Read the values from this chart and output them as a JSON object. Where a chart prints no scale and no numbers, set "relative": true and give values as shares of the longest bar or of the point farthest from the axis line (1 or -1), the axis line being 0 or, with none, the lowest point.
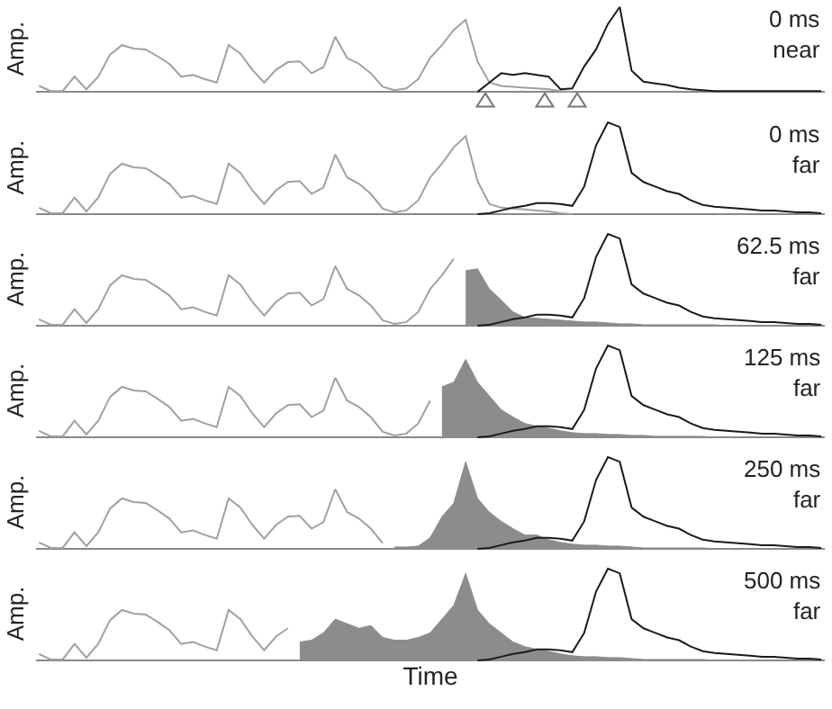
{
  "chart_data": [
    {
      "type": "line",
      "relative": true,
      "ylabel": "Amp.",
      "annotations": [
        "0 ms\nnear"
      ],
      "categories": [
        null,
        null,
        null,
        null,
        null,
        null,
        null,
        null,
        null,
        null,
        null,
        null,
        null,
        null,
        null,
        null,
        null,
        null,
        null,
        null,
        null,
        null,
        null,
        null,
        null,
        null,
        null,
        null,
        null,
        null,
        null,
        null,
        null,
        null,
        null,
        null,
        null,
        null,
        null,
        null,
        null,
        null,
        null,
        null,
        null,
        null,
        null,
        null,
        null,
        null,
        null,
        null,
        null,
        null,
        null,
        null,
        null,
        null,
        null,
        null,
        null,
        null,
        null,
        null,
        null,
        null,
        null
      ],
      "series": [
        {
          "type": "line",
          "color": "#a0a0a0",
          "values": [
            0.07,
            0.01,
            0.01,
            0.18,
            0.03,
            0.18,
            0.44,
            0.55,
            0.51,
            0.5,
            0.42,
            0.33,
            0.18,
            0.2,
            0.15,
            0.11,
            0.55,
            0.45,
            0.26,
            0.11,
            0.26,
            0.35,
            0.36,
            0.22,
            0.29,
            0.65,
            0.4,
            0.33,
            0.22,
            0.06,
            0.02,
            0.04,
            0.15,
            0.4,
            0.55,
            0.73,
            0.85,
            0.36,
            0.11,
            0.07,
            0.06,
            0.05,
            0.04,
            0.03,
            0.01,
            0,
            null,
            null,
            null,
            null,
            null,
            null,
            null,
            null,
            null,
            null,
            null,
            null,
            null,
            null,
            null,
            null,
            null,
            null,
            null,
            null,
            null
          ]
        },
        {
          "type": "line",
          "color": "#1a1a1a",
          "values": [
            null,
            null,
            null,
            null,
            null,
            null,
            null,
            null,
            null,
            null,
            null,
            null,
            null,
            null,
            null,
            null,
            null,
            null,
            null,
            null,
            null,
            null,
            null,
            null,
            null,
            null,
            null,
            null,
            null,
            null,
            null,
            null,
            null,
            null,
            null,
            null,
            null,
            0,
            0.11,
            0.22,
            0.2,
            0.22,
            0.2,
            0.18,
            0.03,
            0.04,
            0.3,
            0.5,
            0.8,
            1,
            0.25,
            0.12,
            0.1,
            0.08,
            0.05,
            0.03,
            0.02,
            0.01,
            0.01,
            0.01,
            0.01,
            0.01,
            0.01,
            0.01,
            0.01,
            0.01,
            0.01
          ]
        }
      ]
    },
    {
      "type": "line",
      "relative": true,
      "ylabel": "Amp.",
      "annotations": [
        "0 ms\nfar"
      ],
      "categories": [
        null,
        null,
        null,
        null,
        null,
        null,
        null,
        null,
        null,
        null,
        null,
        null,
        null,
        null,
        null,
        null,
        null,
        null,
        null,
        null,
        null,
        null,
        null,
        null,
        null,
        null,
        null,
        null,
        null,
        null,
        null,
        null,
        null,
        null,
        null,
        null,
        null,
        null,
        null,
        null,
        null,
        null,
        null,
        null,
        null,
        null,
        null,
        null,
        null,
        null,
        null,
        null,
        null,
        null,
        null,
        null,
        null,
        null,
        null,
        null,
        null,
        null,
        null,
        null,
        null,
        null,
        null
      ],
      "series": [
        {
          "type": "line",
          "color": "#a0a0a0",
          "values": [
            0.07,
            0.01,
            0.01,
            0.18,
            0.03,
            0.18,
            0.44,
            0.55,
            0.51,
            0.5,
            0.42,
            0.33,
            0.18,
            0.2,
            0.15,
            0.11,
            0.55,
            0.45,
            0.26,
            0.11,
            0.26,
            0.35,
            0.36,
            0.22,
            0.29,
            0.65,
            0.4,
            0.33,
            0.22,
            0.06,
            0.02,
            0.04,
            0.15,
            0.4,
            0.55,
            0.73,
            0.85,
            0.36,
            0.11,
            0.07,
            0.06,
            0.05,
            0.04,
            0.03,
            0.01,
            0,
            null,
            null,
            null,
            null,
            null,
            null,
            null,
            null,
            null,
            null,
            null,
            null,
            null,
            null,
            null,
            null,
            null,
            null,
            null,
            null,
            null
          ]
        },
        {
          "type": "line",
          "color": "#1a1a1a",
          "values": [
            null,
            null,
            null,
            null,
            null,
            null,
            null,
            null,
            null,
            null,
            null,
            null,
            null,
            null,
            null,
            null,
            null,
            null,
            null,
            null,
            null,
            null,
            null,
            null,
            null,
            null,
            null,
            null,
            null,
            null,
            null,
            null,
            null,
            null,
            null,
            null,
            null,
            0,
            0.01,
            0.04,
            0.07,
            0.09,
            0.12,
            0.12,
            0.11,
            0.09,
            0.3,
            0.75,
            1,
            0.95,
            0.45,
            0.35,
            0.3,
            0.25,
            0.22,
            0.15,
            0.1,
            0.08,
            0.07,
            0.06,
            0.05,
            0.04,
            0.04,
            0.03,
            0.02,
            0.02,
            0.01
          ]
        }
      ]
    },
    {
      "type": "line",
      "relative": true,
      "ylabel": "Amp.",
      "annotations": [
        "62.5 ms\nfar"
      ],
      "categories": [
        null,
        null,
        null,
        null,
        null,
        null,
        null,
        null,
        null,
        null,
        null,
        null,
        null,
        null,
        null,
        null,
        null,
        null,
        null,
        null,
        null,
        null,
        null,
        null,
        null,
        null,
        null,
        null,
        null,
        null,
        null,
        null,
        null,
        null,
        null,
        null,
        null,
        null,
        null,
        null,
        null,
        null,
        null,
        null,
        null,
        null,
        null,
        null,
        null,
        null,
        null,
        null,
        null,
        null,
        null,
        null,
        null,
        null,
        null,
        null,
        null,
        null,
        null,
        null,
        null,
        null,
        null
      ],
      "series": [
        {
          "type": "line",
          "color": "#a0a0a0",
          "values": [
            0.07,
            0.01,
            0.01,
            0.18,
            0.03,
            0.18,
            0.44,
            0.55,
            0.51,
            0.5,
            0.42,
            0.33,
            0.18,
            0.2,
            0.15,
            0.11,
            0.55,
            0.45,
            0.26,
            0.11,
            0.26,
            0.35,
            0.36,
            0.22,
            0.29,
            0.65,
            0.4,
            0.33,
            0.22,
            0.06,
            0.02,
            0.04,
            0.15,
            0.4,
            0.55,
            0.73,
            null,
            null,
            null,
            null,
            null,
            null,
            null,
            null,
            null,
            null,
            null,
            null,
            null,
            null,
            null,
            null,
            null,
            null,
            null,
            null,
            null,
            null,
            null,
            null,
            null,
            null,
            null,
            null,
            null,
            null,
            null
          ]
        },
        {
          "type": "area",
          "color": "#8c8c8c",
          "values": [
            null,
            null,
            null,
            null,
            null,
            null,
            null,
            null,
            null,
            null,
            null,
            null,
            null,
            null,
            null,
            null,
            null,
            null,
            null,
            null,
            null,
            null,
            null,
            null,
            null,
            null,
            null,
            null,
            null,
            null,
            null,
            null,
            null,
            null,
            null,
            null,
            0.6,
            0.62,
            0.4,
            0.28,
            0.15,
            0.09,
            0.08,
            0.07,
            0.06,
            0.05,
            0.04,
            0.04,
            0.03,
            0.02,
            0.02,
            0.01,
            0.01,
            0.01,
            0.01,
            0.01,
            0.01,
            0.01,
            0,
            null,
            null,
            null,
            null,
            null,
            null,
            null,
            null
          ]
        },
        {
          "type": "line",
          "color": "#1a1a1a",
          "values": [
            null,
            null,
            null,
            null,
            null,
            null,
            null,
            null,
            null,
            null,
            null,
            null,
            null,
            null,
            null,
            null,
            null,
            null,
            null,
            null,
            null,
            null,
            null,
            null,
            null,
            null,
            null,
            null,
            null,
            null,
            null,
            null,
            null,
            null,
            null,
            null,
            null,
            0,
            0.01,
            0.04,
            0.07,
            0.09,
            0.12,
            0.12,
            0.11,
            0.09,
            0.3,
            0.75,
            1,
            0.95,
            0.45,
            0.35,
            0.3,
            0.25,
            0.22,
            0.15,
            0.1,
            0.08,
            0.07,
            0.06,
            0.05,
            0.04,
            0.04,
            0.03,
            0.02,
            0.02,
            0.01
          ]
        }
      ]
    },
    {
      "type": "line",
      "relative": true,
      "ylabel": "Amp.",
      "annotations": [
        "125 ms\nfar"
      ],
      "categories": [
        null,
        null,
        null,
        null,
        null,
        null,
        null,
        null,
        null,
        null,
        null,
        null,
        null,
        null,
        null,
        null,
        null,
        null,
        null,
        null,
        null,
        null,
        null,
        null,
        null,
        null,
        null,
        null,
        null,
        null,
        null,
        null,
        null,
        null,
        null,
        null,
        null,
        null,
        null,
        null,
        null,
        null,
        null,
        null,
        null,
        null,
        null,
        null,
        null,
        null,
        null,
        null,
        null,
        null,
        null,
        null,
        null,
        null,
        null,
        null,
        null,
        null,
        null,
        null,
        null,
        null,
        null
      ],
      "series": [
        {
          "type": "line",
          "color": "#a0a0a0",
          "values": [
            0.07,
            0.01,
            0.01,
            0.18,
            0.03,
            0.18,
            0.44,
            0.55,
            0.51,
            0.5,
            0.42,
            0.33,
            0.18,
            0.2,
            0.15,
            0.11,
            0.55,
            0.45,
            0.26,
            0.11,
            0.26,
            0.35,
            0.36,
            0.22,
            0.29,
            0.65,
            0.4,
            0.33,
            0.22,
            0.06,
            0.02,
            0.04,
            0.15,
            0.4,
            null,
            null,
            null,
            null,
            null,
            null,
            null,
            null,
            null,
            null,
            null,
            null,
            null,
            null,
            null,
            null,
            null,
            null,
            null,
            null,
            null,
            null,
            null,
            null,
            null,
            null,
            null,
            null,
            null,
            null,
            null,
            null,
            null
          ]
        },
        {
          "type": "area",
          "color": "#8c8c8c",
          "values": [
            null,
            null,
            null,
            null,
            null,
            null,
            null,
            null,
            null,
            null,
            null,
            null,
            null,
            null,
            null,
            null,
            null,
            null,
            null,
            null,
            null,
            null,
            null,
            null,
            null,
            null,
            null,
            null,
            null,
            null,
            null,
            null,
            null,
            null,
            0.55,
            0.6,
            0.85,
            0.6,
            0.45,
            0.3,
            0.22,
            0.15,
            0.12,
            0.1,
            0.07,
            0.05,
            0.04,
            0.04,
            0.03,
            0.03,
            0.02,
            0.02,
            0.01,
            0.01,
            0.01,
            0.01,
            0.01,
            0,
            null,
            null,
            null,
            null,
            null,
            null,
            null,
            null,
            null
          ]
        },
        {
          "type": "line",
          "color": "#1a1a1a",
          "values": [
            null,
            null,
            null,
            null,
            null,
            null,
            null,
            null,
            null,
            null,
            null,
            null,
            null,
            null,
            null,
            null,
            null,
            null,
            null,
            null,
            null,
            null,
            null,
            null,
            null,
            null,
            null,
            null,
            null,
            null,
            null,
            null,
            null,
            null,
            null,
            null,
            null,
            0,
            0.01,
            0.04,
            0.07,
            0.09,
            0.12,
            0.12,
            0.11,
            0.09,
            0.3,
            0.75,
            1,
            0.95,
            0.45,
            0.35,
            0.3,
            0.25,
            0.22,
            0.15,
            0.1,
            0.08,
            0.07,
            0.06,
            0.05,
            0.04,
            0.04,
            0.03,
            0.02,
            0.02,
            0.01
          ]
        }
      ]
    },
    {
      "type": "line",
      "relative": true,
      "ylabel": "Amp.",
      "annotations": [
        "250 ms\nfar"
      ],
      "categories": [
        null,
        null,
        null,
        null,
        null,
        null,
        null,
        null,
        null,
        null,
        null,
        null,
        null,
        null,
        null,
        null,
        null,
        null,
        null,
        null,
        null,
        null,
        null,
        null,
        null,
        null,
        null,
        null,
        null,
        null,
        null,
        null,
        null,
        null,
        null,
        null,
        null,
        null,
        null,
        null,
        null,
        null,
        null,
        null,
        null,
        null,
        null,
        null,
        null,
        null,
        null,
        null,
        null,
        null,
        null,
        null,
        null,
        null,
        null,
        null,
        null,
        null,
        null,
        null,
        null,
        null,
        null
      ],
      "series": [
        {
          "type": "line",
          "color": "#a0a0a0",
          "values": [
            0.07,
            0.01,
            0.01,
            0.18,
            0.03,
            0.18,
            0.44,
            0.55,
            0.51,
            0.5,
            0.42,
            0.33,
            0.18,
            0.2,
            0.15,
            0.11,
            0.55,
            0.45,
            0.26,
            0.11,
            0.26,
            0.35,
            0.36,
            0.22,
            0.29,
            0.65,
            0.4,
            0.33,
            0.22,
            0.06,
            null,
            null,
            null,
            null,
            null,
            null,
            null,
            null,
            null,
            null,
            null,
            null,
            null,
            null,
            null,
            null,
            null,
            null,
            null,
            null,
            null,
            null,
            null,
            null,
            null,
            null,
            null,
            null,
            null,
            null,
            null,
            null,
            null,
            null,
            null,
            null,
            null
          ]
        },
        {
          "type": "area",
          "color": "#8c8c8c",
          "values": [
            null,
            null,
            null,
            null,
            null,
            null,
            null,
            null,
            null,
            null,
            null,
            null,
            null,
            null,
            null,
            null,
            null,
            null,
            null,
            null,
            null,
            null,
            null,
            null,
            null,
            null,
            null,
            null,
            null,
            null,
            0.02,
            0.02,
            0.03,
            0.12,
            0.35,
            0.5,
            0.95,
            0.55,
            0.4,
            0.3,
            0.22,
            0.15,
            0.15,
            0.1,
            0.07,
            0.05,
            0.04,
            0.04,
            0.03,
            0.03,
            0.02,
            0.01,
            0.01,
            0.01,
            0.01,
            0.01,
            0.01,
            0,
            null,
            null,
            null,
            null,
            null,
            null,
            null,
            null,
            null
          ]
        },
        {
          "type": "line",
          "color": "#1a1a1a",
          "values": [
            null,
            null,
            null,
            null,
            null,
            null,
            null,
            null,
            null,
            null,
            null,
            null,
            null,
            null,
            null,
            null,
            null,
            null,
            null,
            null,
            null,
            null,
            null,
            null,
            null,
            null,
            null,
            null,
            null,
            null,
            null,
            null,
            null,
            null,
            null,
            null,
            null,
            0,
            0.01,
            0.04,
            0.07,
            0.09,
            0.12,
            0.12,
            0.11,
            0.09,
            0.3,
            0.75,
            1,
            0.95,
            0.45,
            0.35,
            0.3,
            0.25,
            0.22,
            0.15,
            0.1,
            0.08,
            0.07,
            0.06,
            0.05,
            0.04,
            0.04,
            0.03,
            0.02,
            0.02,
            0.01
          ]
        }
      ]
    },
    {
      "type": "line",
      "relative": true,
      "ylabel": "Amp.",
      "xlabel": "Time",
      "annotations": [
        "500 ms\nfar"
      ],
      "categories": [
        null,
        null,
        null,
        null,
        null,
        null,
        null,
        null,
        null,
        null,
        null,
        null,
        null,
        null,
        null,
        null,
        null,
        null,
        null,
        null,
        null,
        null,
        null,
        null,
        null,
        null,
        null,
        null,
        null,
        null,
        null,
        null,
        null,
        null,
        null,
        null,
        null,
        null,
        null,
        null,
        null,
        null,
        null,
        null,
        null,
        null,
        null,
        null,
        null,
        null,
        null,
        null,
        null,
        null,
        null,
        null,
        null,
        null,
        null,
        null,
        null,
        null,
        null,
        null,
        null,
        null,
        null
      ],
      "series": [
        {
          "type": "line",
          "color": "#a0a0a0",
          "values": [
            0.07,
            0.01,
            0.01,
            0.18,
            0.03,
            0.18,
            0.44,
            0.55,
            0.51,
            0.5,
            0.42,
            0.33,
            0.18,
            0.2,
            0.15,
            0.11,
            0.55,
            0.45,
            0.26,
            0.11,
            0.26,
            0.35,
            null,
            null,
            null,
            null,
            null,
            null,
            null,
            null,
            null,
            null,
            null,
            null,
            null,
            null,
            null,
            null,
            null,
            null,
            null,
            null,
            null,
            null,
            null,
            null,
            null,
            null,
            null,
            null,
            null,
            null,
            null,
            null,
            null,
            null,
            null,
            null,
            null,
            null,
            null,
            null,
            null,
            null,
            null,
            null,
            null
          ]
        },
        {
          "type": "area",
          "color": "#8c8c8c",
          "values": [
            null,
            null,
            null,
            null,
            null,
            null,
            null,
            null,
            null,
            null,
            null,
            null,
            null,
            null,
            null,
            null,
            null,
            null,
            null,
            null,
            null,
            null,
            0.2,
            0.22,
            0.3,
            0.45,
            0.4,
            0.35,
            0.38,
            0.25,
            0.22,
            0.22,
            0.25,
            0.3,
            0.45,
            0.6,
            0.95,
            0.55,
            0.4,
            0.3,
            0.2,
            0.15,
            0.12,
            0.1,
            0.07,
            0.05,
            0.04,
            0.04,
            0.03,
            0.03,
            0.02,
            0.01,
            0.01,
            0.01,
            0.01,
            0.01,
            0.01,
            0,
            null,
            null,
            null,
            null,
            null,
            null,
            null,
            null,
            null
          ]
        },
        {
          "type": "line",
          "color": "#1a1a1a",
          "values": [
            null,
            null,
            null,
            null,
            null,
            null,
            null,
            null,
            null,
            null,
            null,
            null,
            null,
            null,
            null,
            null,
            null,
            null,
            null,
            null,
            null,
            null,
            null,
            null,
            null,
            null,
            null,
            null,
            null,
            null,
            null,
            null,
            null,
            null,
            null,
            null,
            null,
            0,
            0.01,
            0.04,
            0.07,
            0.09,
            0.12,
            0.12,
            0.11,
            0.09,
            0.3,
            0.75,
            1,
            0.95,
            0.45,
            0.35,
            0.3,
            0.25,
            0.22,
            0.15,
            0.1,
            0.08,
            0.07,
            0.06,
            0.05,
            0.04,
            0.04,
            0.03,
            0.02,
            0.02,
            0.01
          ]
        }
      ]
    }
  ]
}
